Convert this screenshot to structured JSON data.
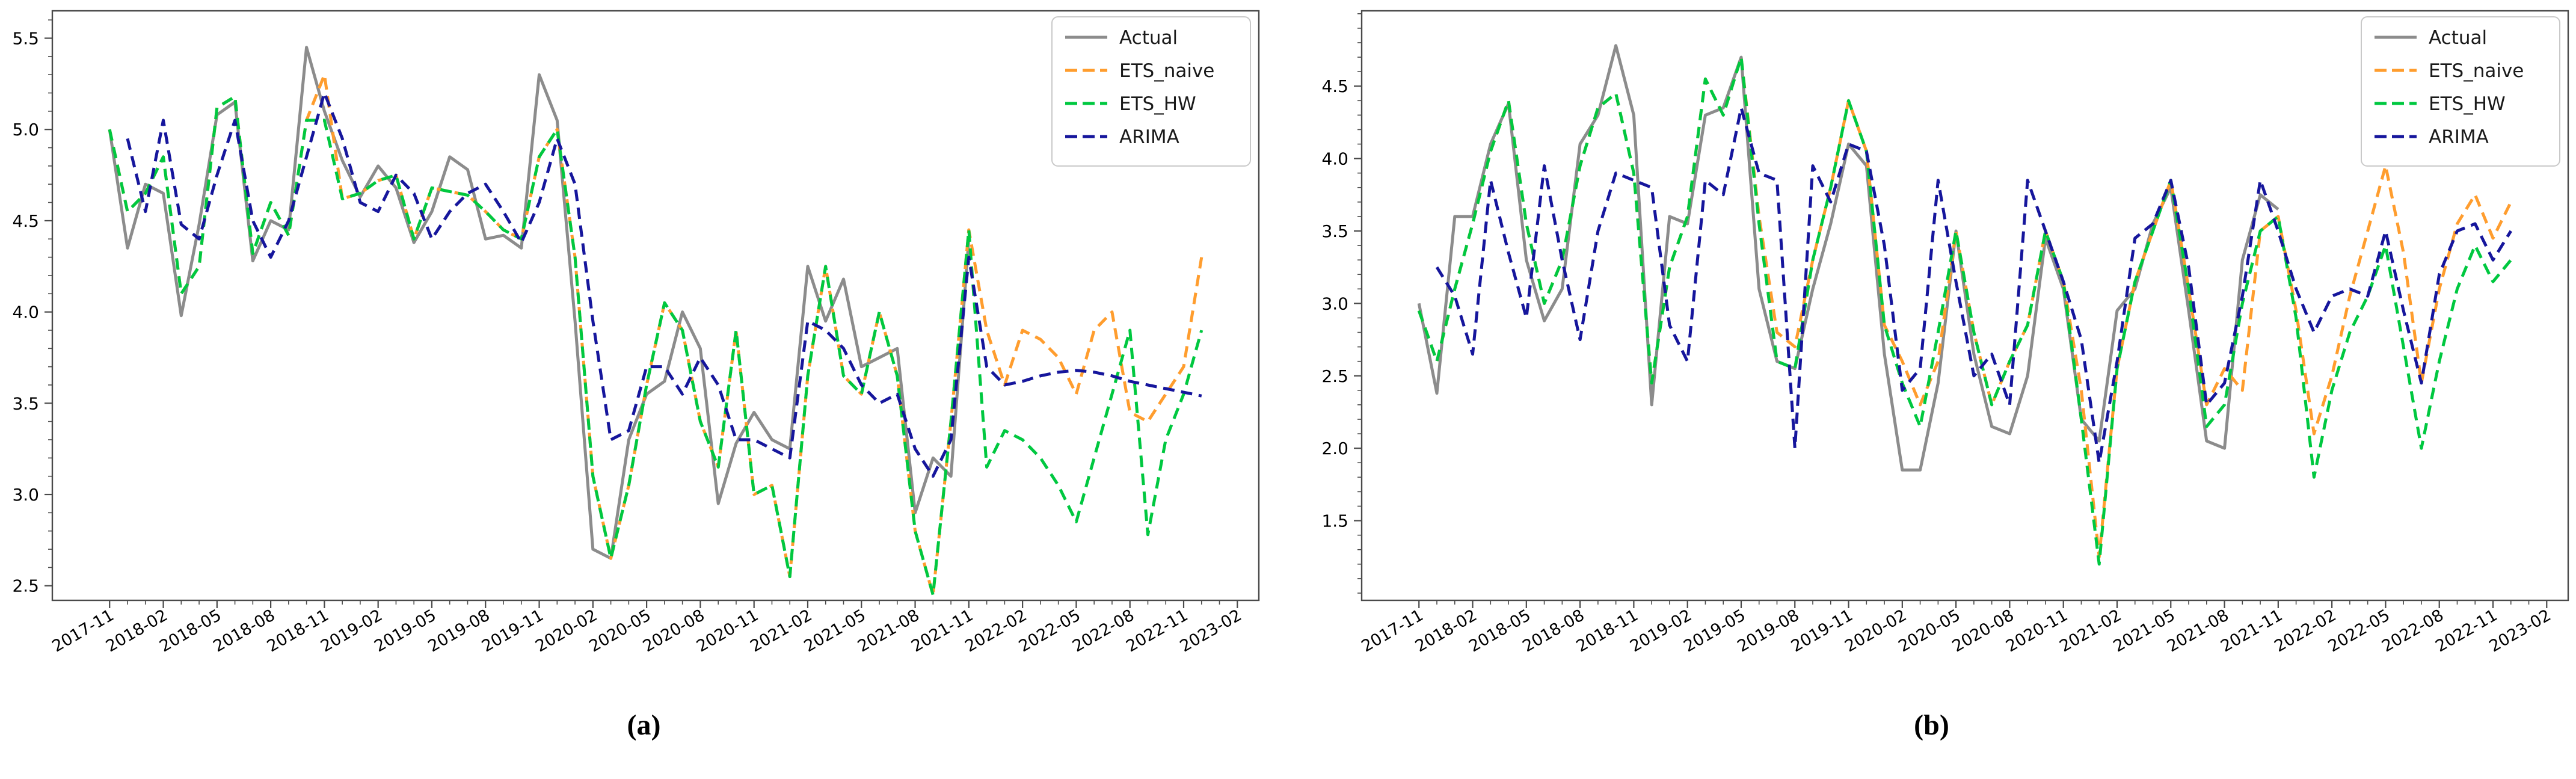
{
  "figure": {
    "background": "#ffffff",
    "axis_color": "#4a4a4a",
    "legend": {
      "border_color": "#c9c9c9",
      "background": "#ffffff",
      "entries": [
        "Actual",
        "ETS_naive",
        "ETS_HW",
        "ARIMA"
      ]
    },
    "captions": {
      "a": "(a)",
      "b": "(b)"
    }
  },
  "chart_data": [
    {
      "type": "line",
      "caption": "(a)",
      "x_start": "2017-11",
      "x_months_total": 62,
      "x_tick_step_months": 3,
      "x_tick_labels": [
        "2017-11",
        "2018-02",
        "2018-05",
        "2018-08",
        "2018-11",
        "2019-02",
        "2019-05",
        "2019-08",
        "2019-11",
        "2020-02",
        "2020-05",
        "2020-08",
        "2020-11",
        "2021-02",
        "2021-05",
        "2021-08",
        "2021-11",
        "2022-02",
        "2022-05",
        "2022-08",
        "2022-11",
        "2023-02"
      ],
      "y_tick_labels": [
        "2.5",
        "3.0",
        "3.5",
        "4.0",
        "4.5",
        "5.0",
        "5.5"
      ],
      "yticks": [
        2.5,
        3.0,
        3.5,
        4.0,
        4.5,
        5.0,
        5.5
      ],
      "ylim": [
        2.42,
        5.65
      ],
      "xlim_months": [
        -3.2,
        64.2
      ],
      "grid": false,
      "legend_position": "upper right",
      "series": [
        {
          "name": "Actual",
          "color": "#8c8c8c",
          "style": "solid",
          "values": [
            5.0,
            4.35,
            4.7,
            4.65,
            3.98,
            4.48,
            5.08,
            5.15,
            4.28,
            4.5,
            4.45,
            5.45,
            5.1,
            4.83,
            4.63,
            4.8,
            4.68,
            4.38,
            4.55,
            4.85,
            4.78,
            4.4,
            4.42,
            4.35,
            5.3,
            5.05,
            3.95,
            2.7,
            2.65,
            3.3,
            3.55,
            3.62,
            4.0,
            3.8,
            2.95,
            3.28,
            3.45,
            3.3,
            3.25,
            4.25,
            3.95,
            4.18,
            3.7,
            3.75,
            3.8,
            2.9,
            3.2,
            3.1,
            4.4,
            null,
            null,
            null,
            null,
            null,
            null,
            null,
            null,
            null,
            null,
            null,
            null,
            null
          ]
        },
        {
          "name": "ETS_naive",
          "color": "#ff9d2e",
          "style": "dashed",
          "values": [
            5.0,
            4.55,
            4.65,
            4.85,
            4.1,
            4.25,
            5.12,
            5.18,
            4.32,
            4.6,
            4.42,
            5.05,
            5.3,
            4.62,
            4.65,
            4.72,
            4.75,
            4.4,
            4.68,
            4.66,
            4.64,
            4.55,
            4.45,
            4.4,
            4.85,
            5.0,
            4.3,
            3.1,
            2.65,
            3.05,
            3.6,
            4.05,
            3.9,
            3.4,
            3.15,
            3.9,
            3.0,
            3.05,
            2.55,
            3.65,
            4.25,
            3.65,
            3.55,
            4.0,
            3.65,
            2.8,
            2.45,
            3.4,
            4.45,
            3.9,
            3.6,
            3.9,
            3.85,
            3.75,
            3.55,
            3.9,
            4.0,
            3.45,
            3.4,
            3.55,
            3.7,
            4.3
          ]
        },
        {
          "name": "ETS_HW",
          "color": "#00c840",
          "style": "dashed",
          "values": [
            5.0,
            4.55,
            4.65,
            4.85,
            4.1,
            4.25,
            5.12,
            5.18,
            4.32,
            4.6,
            4.42,
            5.05,
            5.05,
            4.62,
            4.65,
            4.72,
            4.75,
            4.4,
            4.68,
            4.66,
            4.64,
            4.55,
            4.45,
            4.4,
            4.85,
            5.0,
            4.3,
            3.1,
            2.65,
            3.05,
            3.6,
            4.05,
            3.9,
            3.4,
            3.15,
            3.9,
            3.0,
            3.05,
            2.55,
            3.65,
            4.25,
            3.65,
            3.55,
            4.0,
            3.65,
            2.8,
            2.45,
            3.4,
            4.45,
            3.15,
            3.35,
            3.3,
            3.2,
            3.05,
            2.85,
            3.2,
            3.55,
            3.9,
            2.78,
            3.3,
            3.55,
            3.9
          ]
        },
        {
          "name": "ARIMA",
          "color": "#16169c",
          "style": "dashed",
          "values": [
            null,
            4.95,
            4.55,
            5.05,
            4.48,
            4.4,
            4.75,
            5.05,
            4.5,
            4.3,
            4.5,
            4.85,
            5.2,
            4.95,
            4.6,
            4.55,
            4.75,
            4.65,
            4.4,
            4.55,
            4.65,
            4.7,
            4.55,
            4.38,
            4.6,
            4.95,
            4.7,
            3.95,
            3.3,
            3.35,
            3.7,
            3.7,
            3.55,
            3.75,
            3.6,
            3.3,
            3.3,
            3.25,
            3.2,
            3.95,
            3.9,
            3.8,
            3.6,
            3.5,
            3.55,
            3.25,
            3.1,
            3.3,
            4.3,
            3.7,
            3.6,
            3.62,
            3.65,
            3.67,
            3.68,
            3.67,
            3.65,
            3.62,
            3.6,
            3.58,
            3.56,
            3.54
          ]
        }
      ]
    },
    {
      "type": "line",
      "caption": "(b)",
      "x_start": "2017-11",
      "x_months_total": 62,
      "x_tick_step_months": 3,
      "x_tick_labels": [
        "2017-11",
        "2018-02",
        "2018-05",
        "2018-08",
        "2018-11",
        "2019-02",
        "2019-05",
        "2019-08",
        "2019-11",
        "2020-02",
        "2020-05",
        "2020-08",
        "2020-11",
        "2021-02",
        "2021-05",
        "2021-08",
        "2021-11",
        "2022-02",
        "2022-05",
        "2022-08",
        "2022-11",
        "2023-02"
      ],
      "y_tick_labels": [
        "1.5",
        "2.0",
        "2.5",
        "3.0",
        "3.5",
        "4.0",
        "4.5"
      ],
      "yticks": [
        1.5,
        2.0,
        2.5,
        3.0,
        3.5,
        4.0,
        4.5
      ],
      "ylim": [
        0.95,
        5.02
      ],
      "xlim_months": [
        -3.2,
        64.2
      ],
      "grid": false,
      "legend_position": "upper right",
      "series": [
        {
          "name": "Actual",
          "color": "#8c8c8c",
          "style": "solid",
          "values": [
            3.0,
            2.38,
            3.6,
            3.6,
            4.1,
            4.38,
            3.3,
            2.88,
            3.1,
            4.1,
            4.3,
            4.78,
            4.3,
            2.3,
            3.6,
            3.55,
            4.3,
            4.35,
            4.7,
            3.1,
            2.6,
            2.55,
            3.1,
            3.55,
            4.1,
            3.95,
            2.65,
            1.85,
            1.85,
            2.45,
            3.5,
            2.65,
            2.15,
            2.1,
            2.5,
            3.45,
            3.1,
            2.2,
            2.05,
            2.95,
            3.1,
            3.55,
            3.8,
            2.95,
            2.05,
            2.0,
            3.3,
            3.75,
            3.65,
            null,
            null,
            null,
            null,
            null,
            null,
            null,
            null,
            null,
            null,
            null,
            null,
            null
          ]
        },
        {
          "name": "ETS_naive",
          "color": "#ff9d2e",
          "style": "dashed",
          "values": [
            2.95,
            2.6,
            3.1,
            3.55,
            4.05,
            4.4,
            3.55,
            3.0,
            3.3,
            3.95,
            4.35,
            4.45,
            3.9,
            2.45,
            3.25,
            3.6,
            4.55,
            4.3,
            4.7,
            3.6,
            2.8,
            2.7,
            3.3,
            3.8,
            4.4,
            4.05,
            2.85,
            2.6,
            2.3,
            2.6,
            3.5,
            2.8,
            2.3,
            2.6,
            2.85,
            3.5,
            3.15,
            2.4,
            1.25,
            2.55,
            3.15,
            3.5,
            3.85,
            3.1,
            2.3,
            2.55,
            2.4,
            3.5,
            3.6,
            2.95,
            2.1,
            2.5,
            3.05,
            3.5,
            3.95,
            3.35,
            2.45,
            3.1,
            3.55,
            3.75,
            3.45,
            3.7
          ]
        },
        {
          "name": "ETS_HW",
          "color": "#00c840",
          "style": "dashed",
          "values": [
            2.95,
            2.6,
            3.1,
            3.55,
            4.05,
            4.4,
            3.55,
            3.0,
            3.3,
            3.95,
            4.35,
            4.45,
            3.9,
            2.45,
            3.25,
            3.6,
            4.55,
            4.3,
            4.7,
            3.55,
            2.6,
            2.55,
            3.3,
            3.8,
            4.4,
            4.05,
            2.85,
            2.45,
            2.15,
            2.8,
            3.5,
            2.8,
            2.3,
            2.6,
            2.85,
            3.5,
            3.15,
            2.2,
            1.2,
            2.55,
            3.15,
            3.5,
            3.85,
            3.1,
            2.15,
            2.3,
            3.0,
            3.5,
            3.6,
            2.9,
            1.8,
            2.4,
            2.8,
            3.05,
            3.4,
            2.7,
            2.0,
            2.6,
            3.1,
            3.4,
            3.15,
            3.3
          ]
        },
        {
          "name": "ARIMA",
          "color": "#16169c",
          "style": "dashed",
          "values": [
            null,
            3.25,
            3.05,
            2.65,
            3.85,
            3.35,
            2.9,
            3.95,
            3.3,
            2.75,
            3.5,
            3.9,
            3.85,
            3.8,
            2.85,
            2.6,
            3.85,
            3.75,
            4.35,
            3.9,
            3.85,
            2.0,
            3.95,
            3.7,
            4.1,
            4.05,
            3.4,
            2.4,
            2.55,
            3.85,
            3.15,
            2.5,
            2.65,
            2.3,
            3.85,
            3.5,
            3.15,
            2.75,
            1.9,
            2.6,
            3.45,
            3.55,
            3.85,
            3.25,
            2.3,
            2.45,
            3.05,
            3.85,
            3.5,
            3.1,
            2.8,
            3.05,
            3.1,
            3.05,
            3.5,
            2.95,
            2.45,
            3.2,
            3.5,
            3.55,
            3.3,
            3.5
          ]
        }
      ]
    }
  ]
}
